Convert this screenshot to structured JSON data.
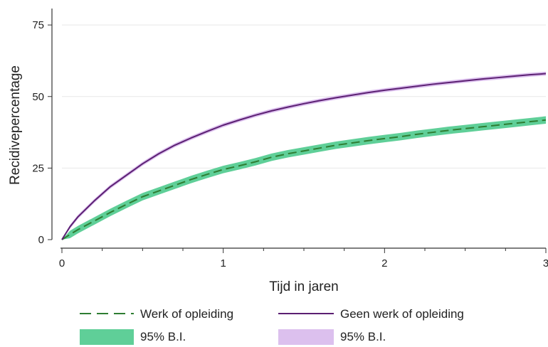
{
  "chart_data": {
    "type": "line",
    "title": "",
    "xlabel": "Tijd in jaren",
    "ylabel": "Recidivepercentage",
    "xlim": [
      0,
      3
    ],
    "ylim": [
      0,
      80
    ],
    "x_ticks": [
      0,
      1,
      2,
      3
    ],
    "x_tick_labels": [
      "0",
      "1",
      "2",
      "3"
    ],
    "y_ticks": [
      0,
      25,
      50,
      75
    ],
    "y_tick_labels": [
      "0",
      "25",
      "50",
      "75"
    ],
    "grid": "horizontal",
    "legend_position": "bottom",
    "series": [
      {
        "name": "Werk of opleiding",
        "ci_name": "95% B.I.",
        "color": "#2e7d32",
        "line_style": "dashed",
        "ci_color": "#5fcf98",
        "ci_halfwidth": 1.3,
        "x": [
          0,
          0.05,
          0.1,
          0.2,
          0.3,
          0.4,
          0.5,
          0.6,
          0.7,
          0.8,
          0.9,
          1.0,
          1.1,
          1.2,
          1.3,
          1.4,
          1.5,
          1.6,
          1.7,
          1.8,
          1.9,
          2.0,
          2.1,
          2.2,
          2.3,
          2.4,
          2.5,
          2.6,
          2.7,
          2.8,
          2.9,
          3.0
        ],
        "y": [
          0,
          1.8,
          3.5,
          6.5,
          9.5,
          12.3,
          15.0,
          17.0,
          19.0,
          21.0,
          22.8,
          24.5,
          25.8,
          27.2,
          28.8,
          30.0,
          31.0,
          32.0,
          33.0,
          33.8,
          34.6,
          35.3,
          36.0,
          36.8,
          37.5,
          38.2,
          38.8,
          39.4,
          40.0,
          40.6,
          41.2,
          41.8
        ]
      },
      {
        "name": "Geen werk of opleiding",
        "ci_name": "95% B.I.",
        "color": "#5b1f72",
        "line_style": "solid",
        "ci_color": "#dcc0ee",
        "ci_halfwidth": 0.7,
        "x": [
          0,
          0.05,
          0.1,
          0.2,
          0.3,
          0.4,
          0.5,
          0.6,
          0.7,
          0.8,
          0.9,
          1.0,
          1.1,
          1.2,
          1.3,
          1.4,
          1.5,
          1.6,
          1.7,
          1.8,
          1.9,
          2.0,
          2.1,
          2.2,
          2.3,
          2.4,
          2.5,
          2.6,
          2.7,
          2.8,
          2.9,
          3.0
        ],
        "y": [
          0,
          4.5,
          8.0,
          13.5,
          18.5,
          22.5,
          26.5,
          30.0,
          33.0,
          35.5,
          37.8,
          40.0,
          41.8,
          43.5,
          45.0,
          46.3,
          47.5,
          48.6,
          49.6,
          50.5,
          51.4,
          52.2,
          52.9,
          53.6,
          54.3,
          54.9,
          55.5,
          56.1,
          56.6,
          57.1,
          57.6,
          58.0
        ]
      }
    ]
  }
}
